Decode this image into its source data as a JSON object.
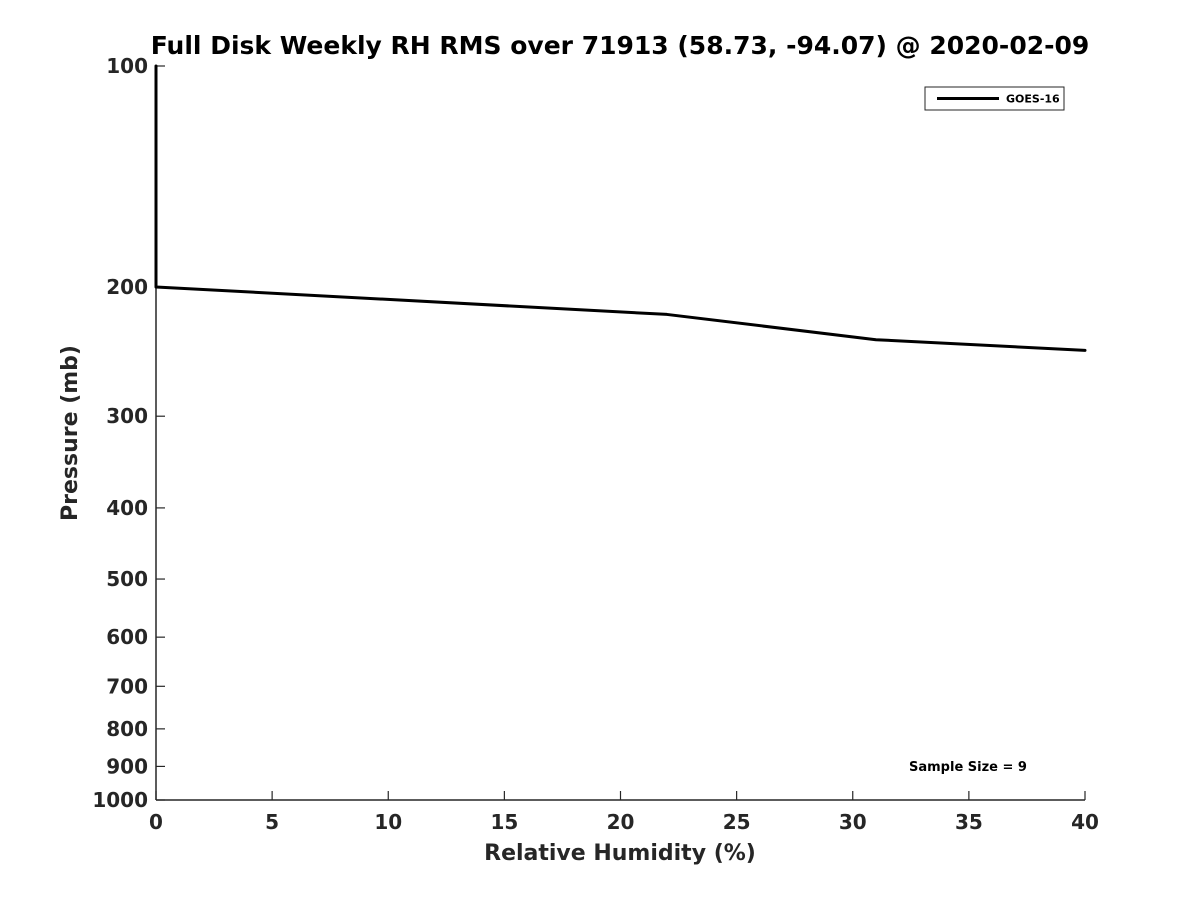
{
  "chart_data": {
    "type": "line",
    "title": "Full Disk Weekly RH RMS over 71913 (58.73, -94.07) @ 2020-02-09",
    "xlabel": "Relative Humidity (%)",
    "ylabel": "Pressure (mb)",
    "xlim": [
      0,
      40
    ],
    "ylim": [
      100,
      1000
    ],
    "y_scale": "log",
    "y_reversed": true,
    "grid": false,
    "x_ticks": [
      0,
      5,
      10,
      15,
      20,
      25,
      30,
      35,
      40
    ],
    "y_ticks": [
      100,
      200,
      300,
      400,
      500,
      600,
      700,
      800,
      900,
      1000
    ],
    "legend_position": "top-right",
    "series": [
      {
        "name": "GOES-16",
        "color": "#000000",
        "points": [
          {
            "x": 0,
            "p": 100
          },
          {
            "x": 0,
            "p": 150
          },
          {
            "x": 0,
            "p": 200
          },
          {
            "x": 22,
            "p": 218
          },
          {
            "x": 31,
            "p": 236
          },
          {
            "x": 40,
            "p": 244
          }
        ]
      }
    ],
    "annotation": "Sample Size = 9"
  }
}
